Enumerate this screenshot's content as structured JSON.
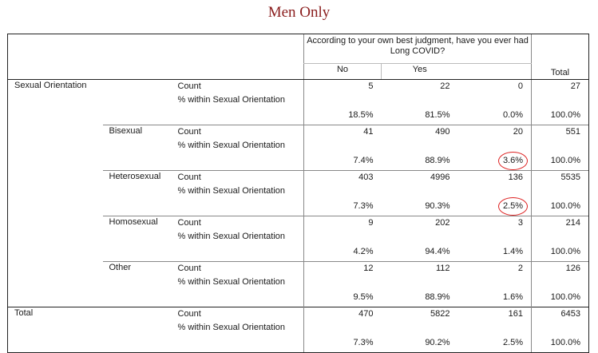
{
  "title": "Men Only",
  "header": {
    "question": "According to your own best judgment, have you ever had Long COVID?",
    "col_no": "No",
    "col_yes": "Yes",
    "col_total": "Total"
  },
  "row_variable": "Sexual Orientation",
  "stat_count": "Count",
  "stat_pct": "% within Sexual Orientation",
  "groups": [
    {
      "label": "",
      "count": [
        "5",
        "22",
        "0",
        "27"
      ],
      "pct": [
        "18.5%",
        "81.5%",
        "0.0%",
        "100.0%"
      ]
    },
    {
      "label": "Bisexual",
      "count": [
        "41",
        "490",
        "20",
        "551"
      ],
      "pct": [
        "7.4%",
        "88.9%",
        "3.6%",
        "100.0%"
      ]
    },
    {
      "label": "Heterosexual",
      "count": [
        "403",
        "4996",
        "136",
        "5535"
      ],
      "pct": [
        "7.3%",
        "90.3%",
        "2.5%",
        "100.0%"
      ]
    },
    {
      "label": "Homosexual",
      "count": [
        "9",
        "202",
        "3",
        "214"
      ],
      "pct": [
        "4.2%",
        "94.4%",
        "1.4%",
        "100.0%"
      ]
    },
    {
      "label": "Other",
      "count": [
        "12",
        "112",
        "2",
        "126"
      ],
      "pct": [
        "9.5%",
        "88.9%",
        "1.6%",
        "100.0%"
      ]
    }
  ],
  "total": {
    "label": "Total",
    "count": [
      "470",
      "5822",
      "161",
      "6453"
    ],
    "pct": [
      "7.3%",
      "90.2%",
      "2.5%",
      "100.0%"
    ]
  },
  "annotation_color": "#dd2222"
}
